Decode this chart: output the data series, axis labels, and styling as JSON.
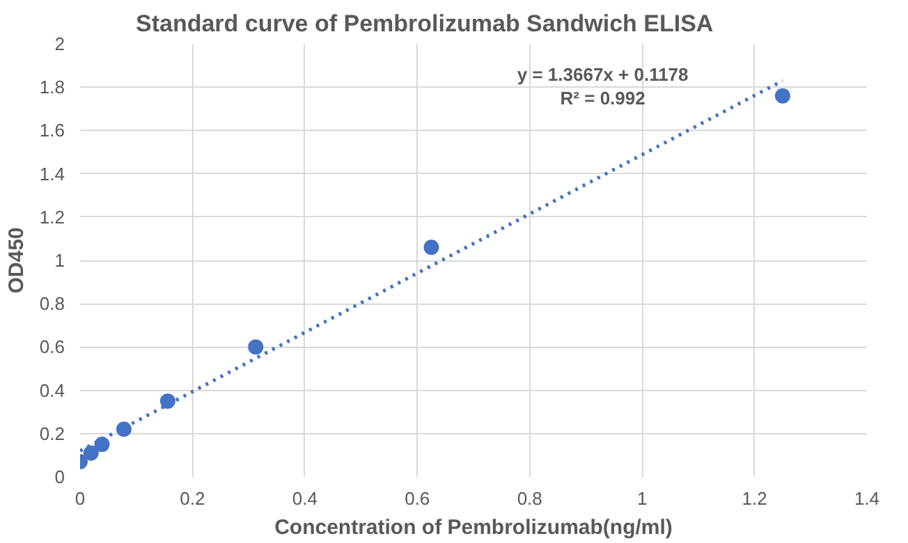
{
  "chart_data": {
    "type": "scatter",
    "title": "Standard curve  of Pembrolizumab Sandwich ELISA",
    "xlabel": "Concentration of Pembrolizumab(ng/ml)",
    "ylabel": "OD450",
    "x": [
      0,
      0.0195,
      0.039,
      0.078,
      0.156,
      0.3125,
      0.625,
      1.25
    ],
    "series": [
      {
        "color": "#4472c4",
        "marker": "circle",
        "values": [
          0.07,
          0.11,
          0.15,
          0.22,
          0.35,
          0.6,
          1.06,
          1.76
        ]
      },
      {
        "type": "line",
        "color": "#4472c4",
        "line_style": "dotted",
        "x": [
          0,
          1.25
        ],
        "values": [
          0.12,
          1.83
        ]
      }
    ],
    "annotations": [
      "y = 1.3667x + 0.1178",
      "R² = 0.992"
    ],
    "xlim": [
      0,
      1.4
    ],
    "xticks": [
      0,
      0.2,
      0.4,
      0.6,
      0.8,
      1,
      1.2,
      1.4
    ],
    "ylim": [
      0,
      2
    ],
    "yticks": [
      0,
      0.2,
      0.4,
      0.6,
      0.8,
      1,
      1.2,
      1.4,
      1.6,
      1.8,
      2
    ],
    "grid": true
  }
}
